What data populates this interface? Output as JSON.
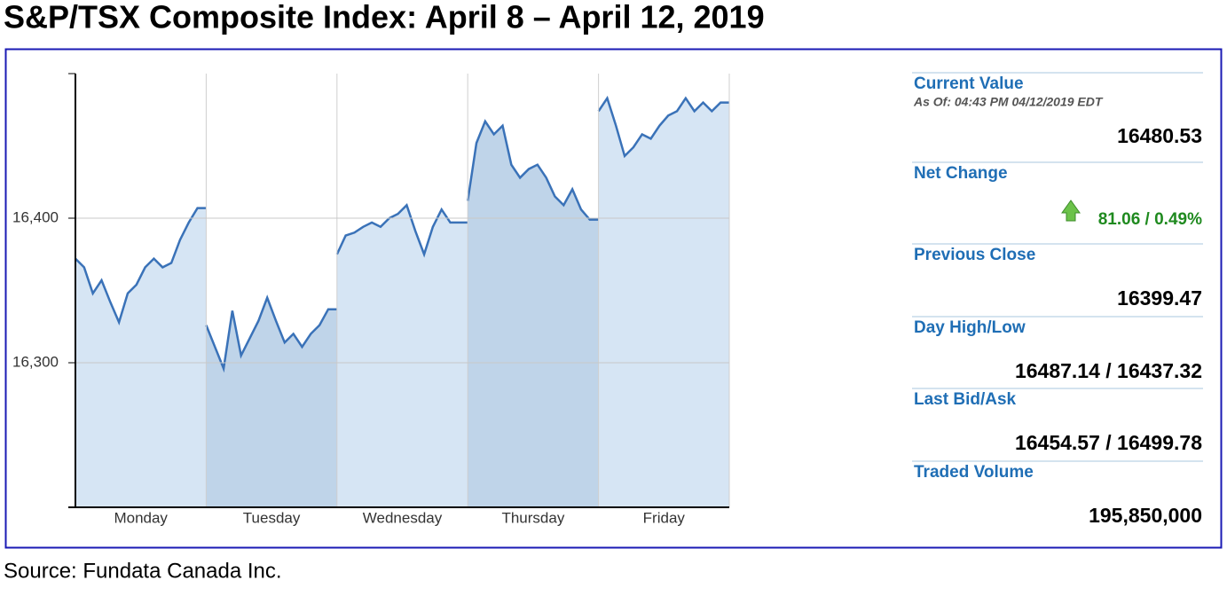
{
  "chart_data": {
    "type": "line",
    "title": "S&P/TSX Composite Index: April 8 – April 12, 2019",
    "source": "Source: Fundata Canada Inc.",
    "categories": [
      "Monday",
      "Tuesday",
      "Wednesday",
      "Thursday",
      "Friday"
    ],
    "values": [
      [
        16372,
        16366,
        16348,
        16357,
        16342,
        16328,
        16348,
        16354,
        16366,
        16372,
        16366,
        16369,
        16385,
        16397,
        16407,
        16407
      ],
      [
        16326,
        16311,
        16296,
        16336,
        16305,
        16317,
        16329,
        16345,
        16329,
        16314,
        16320,
        16311,
        16320,
        16326,
        16337,
        16337
      ],
      [
        16375,
        16388,
        16390,
        16394,
        16397,
        16394,
        16400,
        16403,
        16409,
        16391,
        16375,
        16394,
        16406,
        16397,
        16397,
        16397
      ],
      [
        16412,
        16452,
        16467,
        16458,
        16464,
        16437,
        16428,
        16434,
        16437,
        16428,
        16415,
        16409,
        16420,
        16406,
        16399,
        16399
      ],
      [
        16474,
        16483,
        16464,
        16443,
        16449,
        16458,
        16455,
        16464,
        16471,
        16474,
        16483,
        16474,
        16480,
        16474,
        16480,
        16480
      ]
    ],
    "color": "#3a72b8",
    "fill_colors": [
      "#d6e5f4",
      "#bfd4e9"
    ],
    "ylim": [
      16200,
      16500
    ],
    "yticks": [
      {
        "value": 16300,
        "label": "16,300"
      },
      {
        "value": 16400,
        "label": "16,400"
      }
    ],
    "grid": true
  },
  "quote_panel": {
    "items": [
      {
        "label": "Current Value",
        "note": "As Of: 04:43 PM 04/12/2019 EDT",
        "value": "16480.53"
      },
      {
        "label": "Net Change",
        "value": "81.06 / 0.49%"
      },
      {
        "label": "Previous Close",
        "value": "16399.47"
      },
      {
        "label": "Day High/Low",
        "value": "16487.14 / 16437.32"
      },
      {
        "label": "Last Bid/Ask",
        "value": "16454.57 / 16499.78"
      },
      {
        "label": "Traded Volume",
        "value": "195,850,000"
      }
    ]
  }
}
